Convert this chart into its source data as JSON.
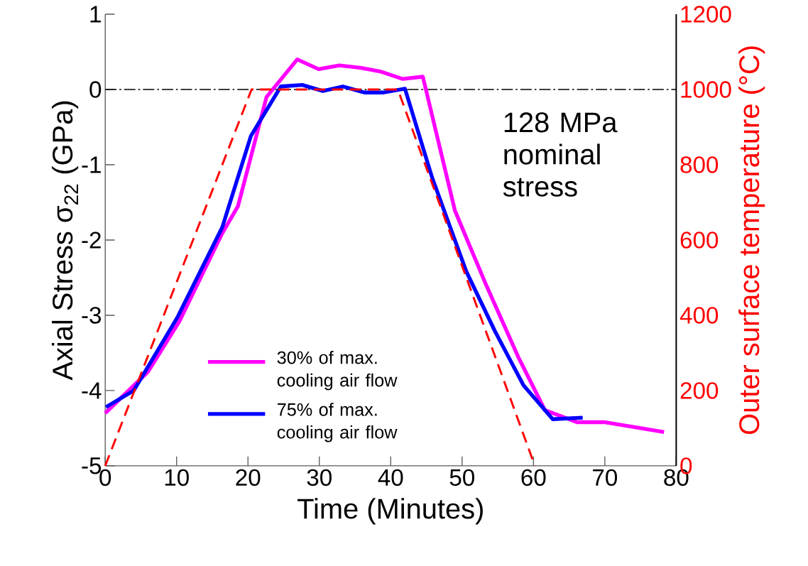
{
  "chart_data": {
    "type": "line",
    "xlabel": "Time (Minutes)",
    "ylabel": "Axial Stress σ$_{22}$ (GPa)",
    "y2label": "Outer surface temperature (°C)",
    "xlim": [
      0,
      80
    ],
    "xticks": [
      0,
      10,
      20,
      30,
      40,
      50,
      60,
      70,
      80
    ],
    "ylim": [
      -5,
      1
    ],
    "yticks": [
      -5,
      -4,
      -3,
      -2,
      -1,
      0,
      1
    ],
    "y2lim": [
      0,
      1200
    ],
    "y2ticks": [
      0,
      200,
      400,
      600,
      800,
      1000,
      1200
    ],
    "grid": false,
    "legend": "bottom",
    "marker": "none",
    "series": [
      {
        "name": "30% of max. cooling air flow",
        "color": "#ff00ff",
        "line_style": "solid",
        "x": [
          0,
          6,
          10.4,
          16.4,
          18.6,
          22.6,
          26.9,
          29.9,
          32.8,
          35.7,
          38.5,
          41.7,
          44.5,
          49.0,
          53.2,
          57.9,
          61.6,
          66.1,
          69.9,
          78.3
        ],
        "values": [
          -4.3,
          -3.75,
          -3.08,
          -1.91,
          -1.55,
          -0.1,
          0.4,
          0.27,
          0.32,
          0.29,
          0.24,
          0.14,
          0.17,
          -1.61,
          -2.56,
          -3.56,
          -4.26,
          -4.42,
          -4.42,
          -4.55
        ]
      },
      {
        "name": "75% of max. cooling air flow",
        "color": "#0000ff",
        "line_style": "solid",
        "x": [
          0.1,
          4.0,
          10.1,
          16.4,
          20.4,
          24.6,
          27.6,
          30.5,
          33.3,
          36.3,
          39.0,
          42.0,
          45.8,
          50.6,
          54.6,
          58.6,
          62.7,
          66.9
        ],
        "values": [
          -4.22,
          -4.0,
          -3.03,
          -1.83,
          -0.62,
          0.04,
          0.06,
          -0.02,
          0.04,
          -0.04,
          -0.04,
          0.01,
          -1.17,
          -2.42,
          -3.21,
          -3.93,
          -4.38,
          -4.36
        ]
      },
      {
        "color": "#ff0000",
        "line_style": "dashed",
        "axis": "y2",
        "x": [
          0,
          20.5,
          41,
          60.2
        ],
        "values": [
          0,
          1000,
          1000,
          0
        ]
      }
    ],
    "ref_lines": [
      {
        "axis": "y",
        "value": 0,
        "color": "#000000",
        "line_style": "dashdot"
      }
    ],
    "annotations": [
      "128 MPa nominal stress"
    ]
  }
}
